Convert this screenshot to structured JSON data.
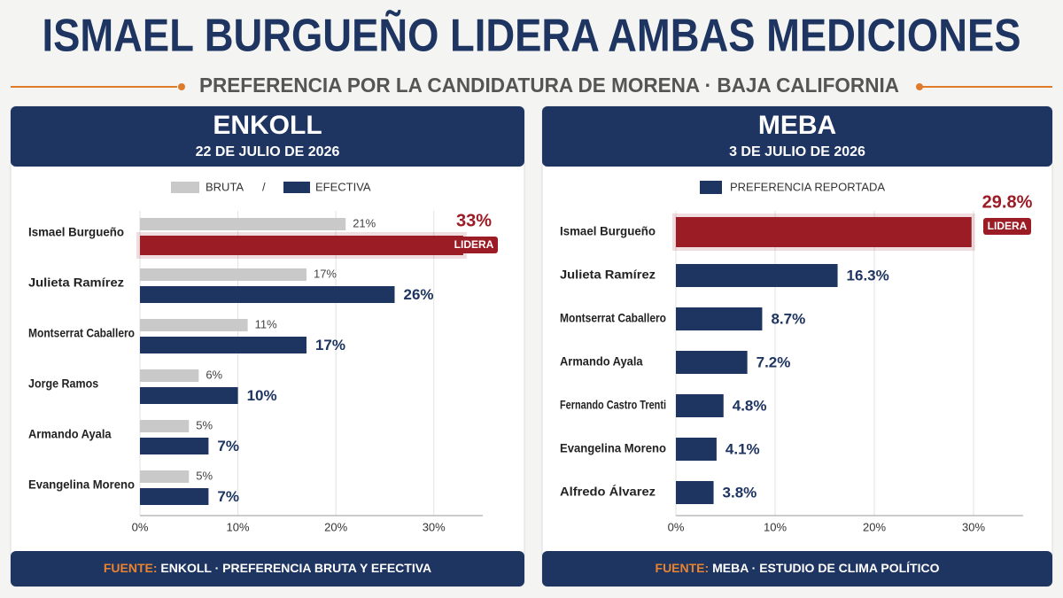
{
  "header": {
    "title": "ISMAEL BURGUEÑO LIDERA AMBAS MEDICIONES",
    "subtitle": "PREFERENCIA POR LA CANDIDATURA DE MORENA · BAJA CALIFORNIA"
  },
  "chart_data": [
    {
      "type": "bar",
      "orientation": "horizontal",
      "title": "ENKOLL",
      "subtitle": "22 DE JULIO DE 2026",
      "categories": [
        "Ismael Burgueño",
        "Julieta Ramírez",
        "Montserrat Caballero",
        "Jorge Ramos",
        "Armando Ayala",
        "Evangelina Moreno"
      ],
      "series": [
        {
          "name": "BRUTA",
          "color": "#c9c9c9",
          "values": [
            21,
            17,
            11,
            6,
            5,
            5
          ],
          "value_labels": [
            "21%",
            "17%",
            "11%",
            "6%",
            "5%",
            "5%"
          ]
        },
        {
          "name": "EFECTIVA",
          "color": "#1e3461",
          "values": [
            33,
            26,
            17,
            10,
            7,
            7
          ],
          "value_labels": [
            "33%",
            "26%",
            "17%",
            "10%",
            "7%",
            "7%"
          ]
        }
      ],
      "legend_separator": "/",
      "highlight": {
        "series": 1,
        "index": 0,
        "color": "#9c1c25"
      },
      "annotation": "LIDERA",
      "xlim": [
        0,
        35
      ],
      "xticks": [
        {
          "value": 0,
          "label": "0%"
        },
        {
          "value": 10,
          "label": "10%"
        },
        {
          "value": 20,
          "label": "20%"
        },
        {
          "value": 30,
          "label": "30%"
        }
      ],
      "grid": true,
      "source_label": "FUENTE:",
      "source": "ENKOLL · PREFERENCIA BRUTA Y EFECTIVA"
    },
    {
      "type": "bar",
      "orientation": "horizontal",
      "title": "MEBA",
      "subtitle": "3 DE JULIO DE 2026",
      "categories": [
        "Ismael Burgueño",
        "Julieta Ramírez",
        "Montserrat Caballero",
        "Armando Ayala",
        "Fernando Castro Trenti",
        "Evangelina Moreno",
        "Alfredo Álvarez"
      ],
      "series": [
        {
          "name": "PREFERENCIA REPORTADA",
          "color": "#1e3461",
          "values": [
            29.8,
            16.3,
            8.7,
            7.2,
            4.8,
            4.1,
            3.8
          ],
          "value_labels": [
            "29.8%",
            "16.3%",
            "8.7%",
            "7.2%",
            "4.8%",
            "4.1%",
            "3.8%"
          ]
        }
      ],
      "highlight": {
        "series": 0,
        "index": 0,
        "color": "#9c1c25"
      },
      "annotation": "LIDERA",
      "xlim": [
        0,
        35
      ],
      "xticks": [
        {
          "value": 0,
          "label": "0%"
        },
        {
          "value": 10,
          "label": "10%"
        },
        {
          "value": 20,
          "label": "20%"
        },
        {
          "value": 30,
          "label": "30%"
        }
      ],
      "grid": true,
      "source_label": "FUENTE:",
      "source": "MEBA · ESTUDIO DE CLIMA POLÍTICO"
    }
  ]
}
